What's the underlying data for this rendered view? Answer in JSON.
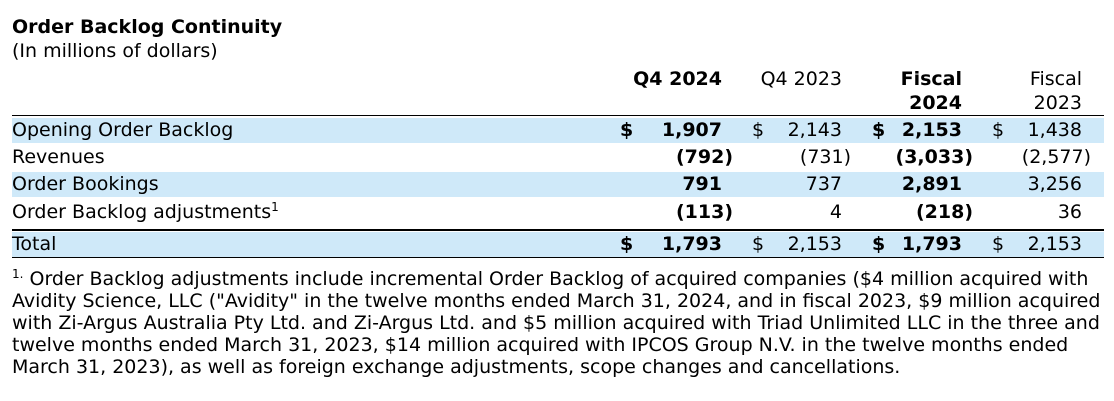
{
  "title": "Order Backlog Continuity",
  "subtitle": "(In millions of dollars)",
  "columns": {
    "q4_2024": "Q4 2024",
    "q4_2023": "Q4 2023",
    "fiscal_2024_line1": "Fiscal",
    "fiscal_2024_line2": "2024",
    "fiscal_2023_line1": "Fiscal",
    "fiscal_2023_line2": "2023"
  },
  "currency": "$",
  "rows": [
    {
      "label": "Opening Order Backlog",
      "q4_2024": "1,907",
      "q4_2023": "2,143",
      "fiscal_2024": "2,153",
      "fiscal_2023": "1,438"
    },
    {
      "label": "Revenues",
      "q4_2024": "(792)",
      "q4_2023": "(731)",
      "fiscal_2024": "(3,033)",
      "fiscal_2023": "(2,577)"
    },
    {
      "label": "Order Bookings",
      "q4_2024": "791",
      "q4_2023": "737",
      "fiscal_2024": "2,891",
      "fiscal_2023": "3,256"
    },
    {
      "label": "Order Backlog adjustments",
      "label_sup": "1",
      "q4_2024": "(113)",
      "q4_2023": "4",
      "fiscal_2024": "(218)",
      "fiscal_2023": "36"
    },
    {
      "label": "Total",
      "q4_2024": "1,793",
      "q4_2023": "2,153",
      "fiscal_2024": "1,793",
      "fiscal_2023": "2,153"
    }
  ],
  "footnote": {
    "marker": "1.",
    "text": " Order Backlog adjustments include incremental Order Backlog of acquired companies ($4 million acquired with Avidity Science, LLC (\"Avidity\" in the twelve months ended March 31, 2024, and in fiscal 2023, $9 million acquired with Zi-Argus Australia Pty Ltd. and Zi-Argus Ltd. and $5 million acquired with Triad Unlimited LLC in the three and twelve months ended March 31, 2023, $14 million acquired with IPCOS Group N.V. in the twelve months ended March 31, 2023), as well as foreign exchange adjustments, scope changes and cancellations."
  }
}
